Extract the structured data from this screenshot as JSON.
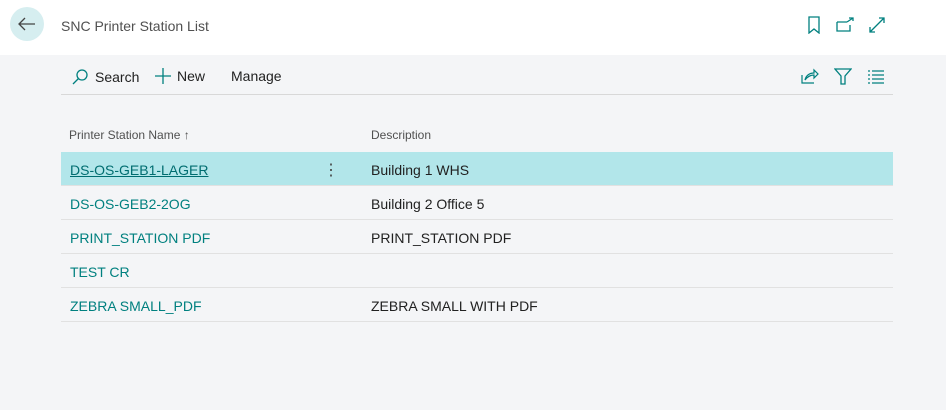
{
  "header": {
    "title": "SNC Printer Station List"
  },
  "toolbar": {
    "search": "Search",
    "new": "New",
    "manage": "Manage"
  },
  "columns": {
    "name": "Printer Station Name",
    "sort": "↑",
    "description": "Description"
  },
  "rows": [
    {
      "name": "DS-OS-GEB1-LAGER",
      "description": "Building 1 WHS",
      "selected": true
    },
    {
      "name": "DS-OS-GEB2-2OG",
      "description": "Building 2 Office 5"
    },
    {
      "name": "PRINT_STATION PDF",
      "description": "PRINT_STATION PDF"
    },
    {
      "name": "TEST CR",
      "description": ""
    },
    {
      "name": "ZEBRA SMALL_PDF",
      "description": "ZEBRA SMALL WITH PDF"
    }
  ],
  "colors": {
    "accent": "#00807f",
    "selected_row": "#b2e6ea"
  }
}
